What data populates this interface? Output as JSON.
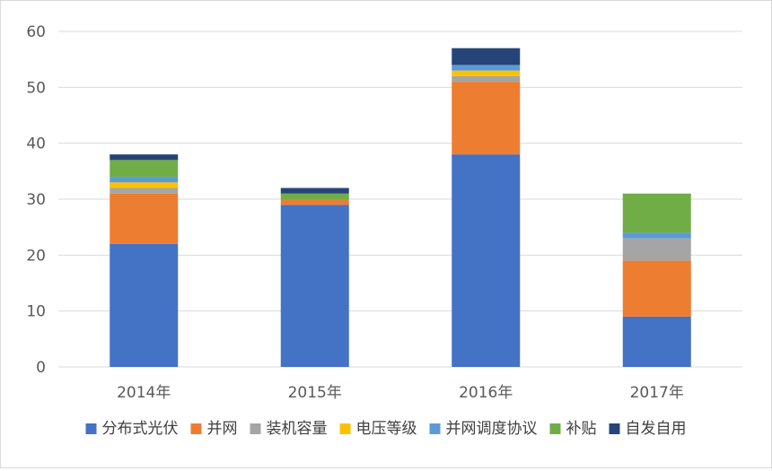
{
  "chart_data": {
    "type": "bar",
    "stacked": true,
    "categories": [
      "2014年",
      "2015年",
      "2016年",
      "2017年"
    ],
    "series": [
      {
        "name": "分布式光伏",
        "color": "#4472C4",
        "values": [
          22,
          29,
          38,
          9
        ]
      },
      {
        "name": "并网",
        "color": "#ED7D31",
        "values": [
          9,
          1,
          13,
          10
        ]
      },
      {
        "name": "装机容量",
        "color": "#A5A5A5",
        "values": [
          1,
          0,
          1,
          4
        ]
      },
      {
        "name": "电压等级",
        "color": "#FFC000",
        "values": [
          1,
          0,
          1,
          0
        ]
      },
      {
        "name": "并网调度协议",
        "color": "#5B9BD5",
        "values": [
          1,
          0,
          1,
          1
        ]
      },
      {
        "name": "补贴",
        "color": "#70AD47",
        "values": [
          3,
          1,
          0,
          7
        ]
      },
      {
        "name": "自发自用",
        "color": "#264478",
        "values": [
          1,
          1,
          3,
          0
        ]
      }
    ],
    "ylim": [
      0,
      60
    ],
    "yticks": [
      0,
      10,
      20,
      30,
      40,
      50,
      60
    ],
    "grid": true,
    "legend_position": "bottom",
    "title": "",
    "xlabel": "",
    "ylabel": ""
  }
}
